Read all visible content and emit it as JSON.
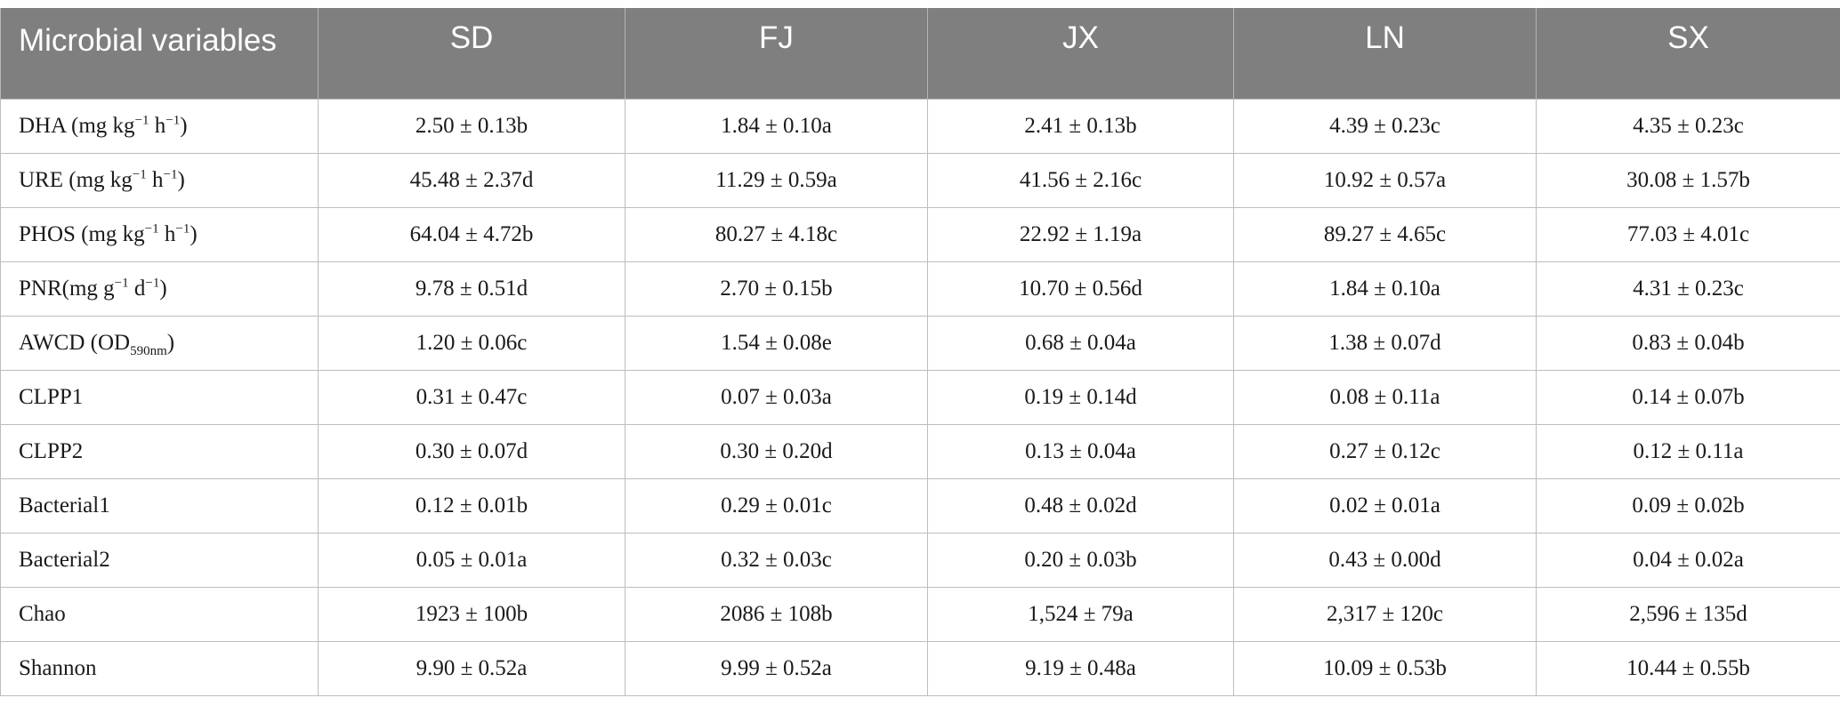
{
  "table": {
    "headers": [
      "Microbial variables",
      "SD",
      "FJ",
      "JX",
      "LN",
      "SX"
    ],
    "rows": [
      {
        "label_parts": [
          {
            "t": "DHA (mg kg",
            "s": "n"
          },
          {
            "t": "−1",
            "s": "sup"
          },
          {
            "t": " h",
            "s": "n"
          },
          {
            "t": "−1",
            "s": "sup"
          },
          {
            "t": ")",
            "s": "n"
          }
        ],
        "values": [
          "2.50 ± 0.13b",
          "1.84 ± 0.10a",
          "2.41 ± 0.13b",
          "4.39 ± 0.23c",
          "4.35 ± 0.23c"
        ]
      },
      {
        "label_parts": [
          {
            "t": "URE (mg kg",
            "s": "n"
          },
          {
            "t": "−1",
            "s": "sup"
          },
          {
            "t": " h",
            "s": "n"
          },
          {
            "t": "−1",
            "s": "sup"
          },
          {
            "t": ")",
            "s": "n"
          }
        ],
        "values": [
          "45.48 ± 2.37d",
          "11.29 ± 0.59a",
          "41.56 ± 2.16c",
          "10.92 ± 0.57a",
          "30.08 ± 1.57b"
        ]
      },
      {
        "label_parts": [
          {
            "t": "PHOS (mg kg",
            "s": "n"
          },
          {
            "t": "−1",
            "s": "sup"
          },
          {
            "t": " h",
            "s": "n"
          },
          {
            "t": "−1",
            "s": "sup"
          },
          {
            "t": ")",
            "s": "n"
          }
        ],
        "values": [
          "64.04 ± 4.72b",
          "80.27 ± 4.18c",
          "22.92 ± 1.19a",
          "89.27 ± 4.65c",
          "77.03 ± 4.01c"
        ]
      },
      {
        "label_parts": [
          {
            "t": "PNR(mg g",
            "s": "n"
          },
          {
            "t": "−1",
            "s": "sup"
          },
          {
            "t": " d",
            "s": "n"
          },
          {
            "t": "−1",
            "s": "sup"
          },
          {
            "t": ")",
            "s": "n"
          }
        ],
        "values": [
          "9.78 ± 0.51d",
          "2.70 ± 0.15b",
          "10.70 ± 0.56d",
          "1.84 ± 0.10a",
          "4.31 ± 0.23c"
        ]
      },
      {
        "label_parts": [
          {
            "t": "AWCD (OD",
            "s": "n"
          },
          {
            "t": "590nm",
            "s": "sub"
          },
          {
            "t": ")",
            "s": "n"
          }
        ],
        "values": [
          "1.20 ± 0.06c",
          "1.54 ± 0.08e",
          "0.68 ± 0.04a",
          "1.38 ± 0.07d",
          "0.83 ± 0.04b"
        ]
      },
      {
        "label_parts": [
          {
            "t": "CLPP1",
            "s": "n"
          }
        ],
        "values": [
          "0.31 ± 0.47c",
          "0.07 ± 0.03a",
          "0.19 ± 0.14d",
          "0.08 ± 0.11a",
          "0.14 ± 0.07b"
        ]
      },
      {
        "label_parts": [
          {
            "t": "CLPP2",
            "s": "n"
          }
        ],
        "values": [
          "0.30 ± 0.07d",
          "0.30 ± 0.20d",
          "0.13 ± 0.04a",
          "0.27 ± 0.12c",
          "0.12 ± 0.11a"
        ]
      },
      {
        "label_parts": [
          {
            "t": "Bacterial1",
            "s": "n"
          }
        ],
        "values": [
          "0.12 ± 0.01b",
          "0.29 ± 0.01c",
          "0.48 ± 0.02d",
          "0.02 ± 0.01a",
          "0.09 ± 0.02b"
        ]
      },
      {
        "label_parts": [
          {
            "t": "Bacterial2",
            "s": "n"
          }
        ],
        "values": [
          "0.05 ± 0.01a",
          "0.32 ± 0.03c",
          "0.20 ± 0.03b",
          "0.43 ± 0.00d",
          "0.04 ± 0.02a"
        ]
      },
      {
        "label_parts": [
          {
            "t": "Chao",
            "s": "n"
          }
        ],
        "values": [
          "1923 ± 100b",
          "2086 ± 108b",
          "1,524 ± 79a",
          "2,317 ± 120c",
          "2,596 ± 135d"
        ]
      },
      {
        "label_parts": [
          {
            "t": "Shannon",
            "s": "n"
          }
        ],
        "values": [
          "9.90 ± 0.52a",
          "9.99 ± 0.52a",
          "9.19 ± 0.48a",
          "10.09 ± 0.53b",
          "10.44 ± 0.55b"
        ]
      }
    ]
  },
  "colors": {
    "header_bg": "#7f7f7f",
    "header_text": "#ffffff",
    "grid": "#bdbdbd",
    "cell_text": "#1a1a1a"
  }
}
